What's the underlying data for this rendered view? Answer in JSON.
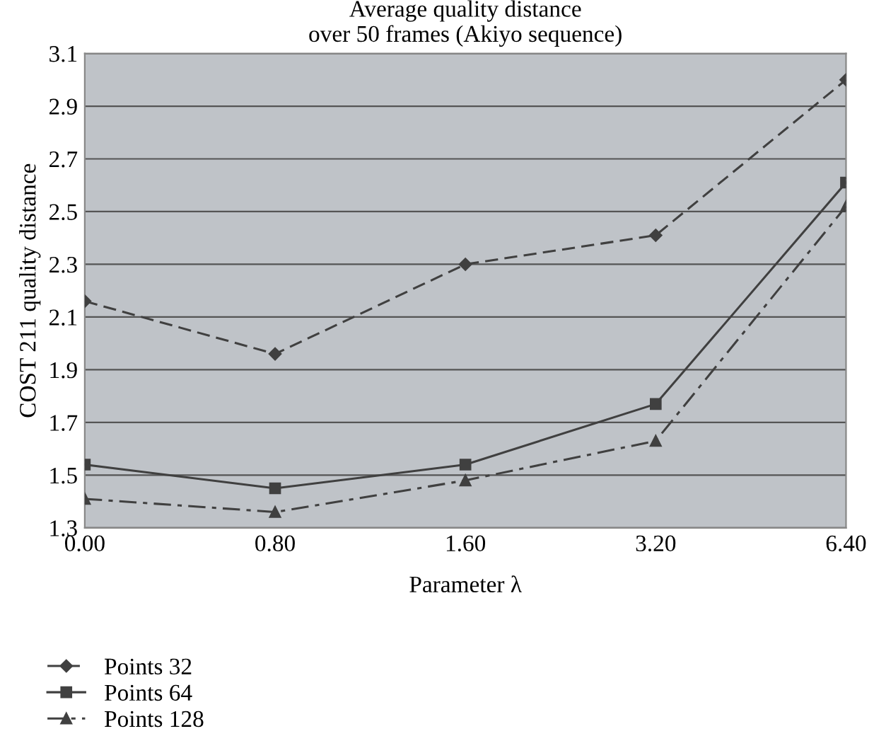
{
  "chart_data": {
    "type": "line",
    "title": "Average quality distance\nover 50 frames (Akiyo sequence)",
    "xlabel": "Parameter λ",
    "ylabel": "COST 211 quality distance",
    "categories": [
      "0.00",
      "0.80",
      "1.60",
      "3.20",
      "6.40"
    ],
    "series": [
      {
        "name": "Points 32",
        "color": "#404040",
        "values": [
          2.16,
          1.96,
          2.3,
          2.41,
          3.0
        ],
        "marker": "diamond",
        "line_style": "dashed"
      },
      {
        "name": "Points 64",
        "color": "#404040",
        "values": [
          1.54,
          1.45,
          1.54,
          1.77,
          2.61
        ],
        "marker": "square",
        "line_style": "solid"
      },
      {
        "name": "Points 128",
        "color": "#404040",
        "values": [
          1.41,
          1.36,
          1.48,
          1.63,
          2.52
        ],
        "marker": "triangle",
        "line_style": "dashdot"
      }
    ],
    "ylim": [
      1.3,
      3.1
    ],
    "yticks": [
      1.3,
      1.5,
      1.7,
      1.9,
      2.1,
      2.3,
      2.5,
      2.7,
      2.9,
      3.1
    ],
    "grid": "y",
    "legend": "bottom"
  }
}
